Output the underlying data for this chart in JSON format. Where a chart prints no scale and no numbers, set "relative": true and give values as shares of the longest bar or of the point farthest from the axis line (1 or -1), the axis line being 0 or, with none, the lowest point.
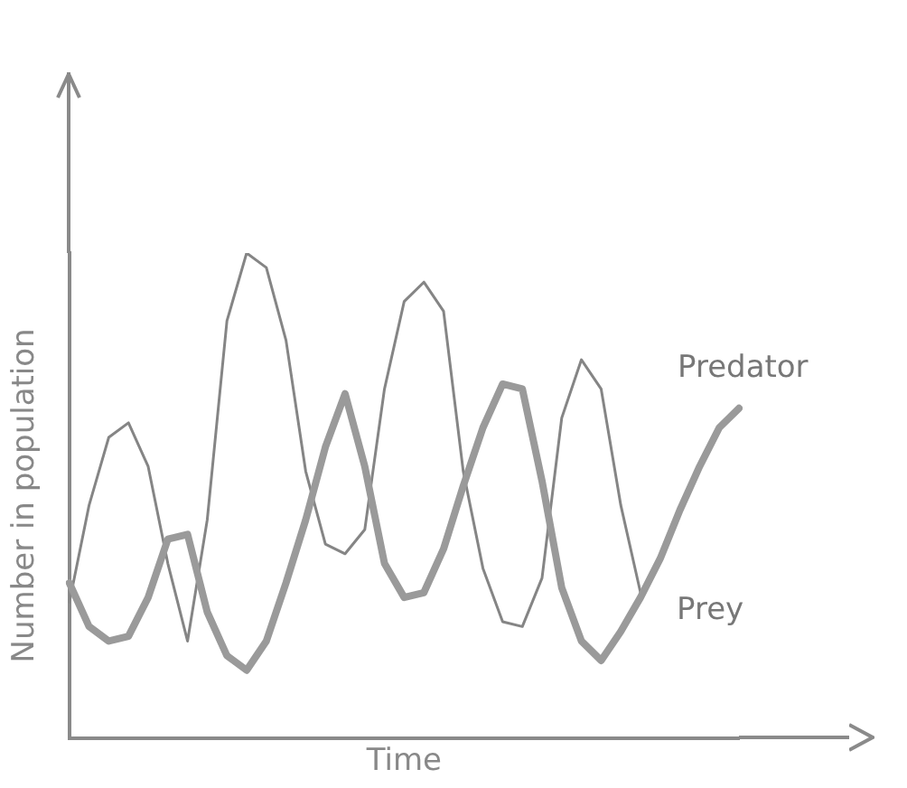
{
  "chart_data": {
    "type": "line",
    "relative": true,
    "xlabel": "Time",
    "ylabel": "Number in population",
    "grid": false,
    "legend": false,
    "marker": "none",
    "line_style": "solid",
    "categories": [
      null,
      null,
      null,
      null,
      null,
      null,
      null,
      null,
      null,
      null,
      null,
      null,
      null,
      null,
      null,
      null,
      null,
      null,
      null,
      null,
      null,
      null,
      null,
      null,
      null,
      null,
      null,
      null,
      null,
      null,
      null,
      null,
      null,
      null,
      null
    ],
    "series": [
      {
        "name": "Predator",
        "color": "#9a9a9a",
        "values": [
          0.32,
          0.23,
          0.2,
          0.21,
          0.29,
          0.41,
          0.42,
          0.26,
          0.17,
          0.14,
          0.2,
          0.32,
          0.45,
          0.6,
          0.71,
          0.56,
          0.36,
          0.29,
          0.3,
          0.39,
          0.52,
          0.64,
          0.73,
          0.72,
          0.53,
          0.31,
          0.2,
          0.16,
          0.22,
          0.29,
          0.37,
          0.47,
          0.56,
          0.64,
          0.68
        ]
      },
      {
        "name": "Prey",
        "color": "#858585",
        "values": [
          0.28,
          0.48,
          0.62,
          0.65,
          0.56,
          0.36,
          0.2,
          0.45,
          0.86,
          1,
          0.97,
          0.82,
          0.55,
          0.4,
          0.38,
          0.43,
          0.72,
          0.9,
          0.94,
          0.88,
          0.55,
          0.35,
          0.24,
          0.23,
          0.33,
          0.66,
          0.78,
          0.72,
          0.48,
          0.3,
          null,
          null,
          null,
          null,
          null
        ]
      }
    ]
  }
}
